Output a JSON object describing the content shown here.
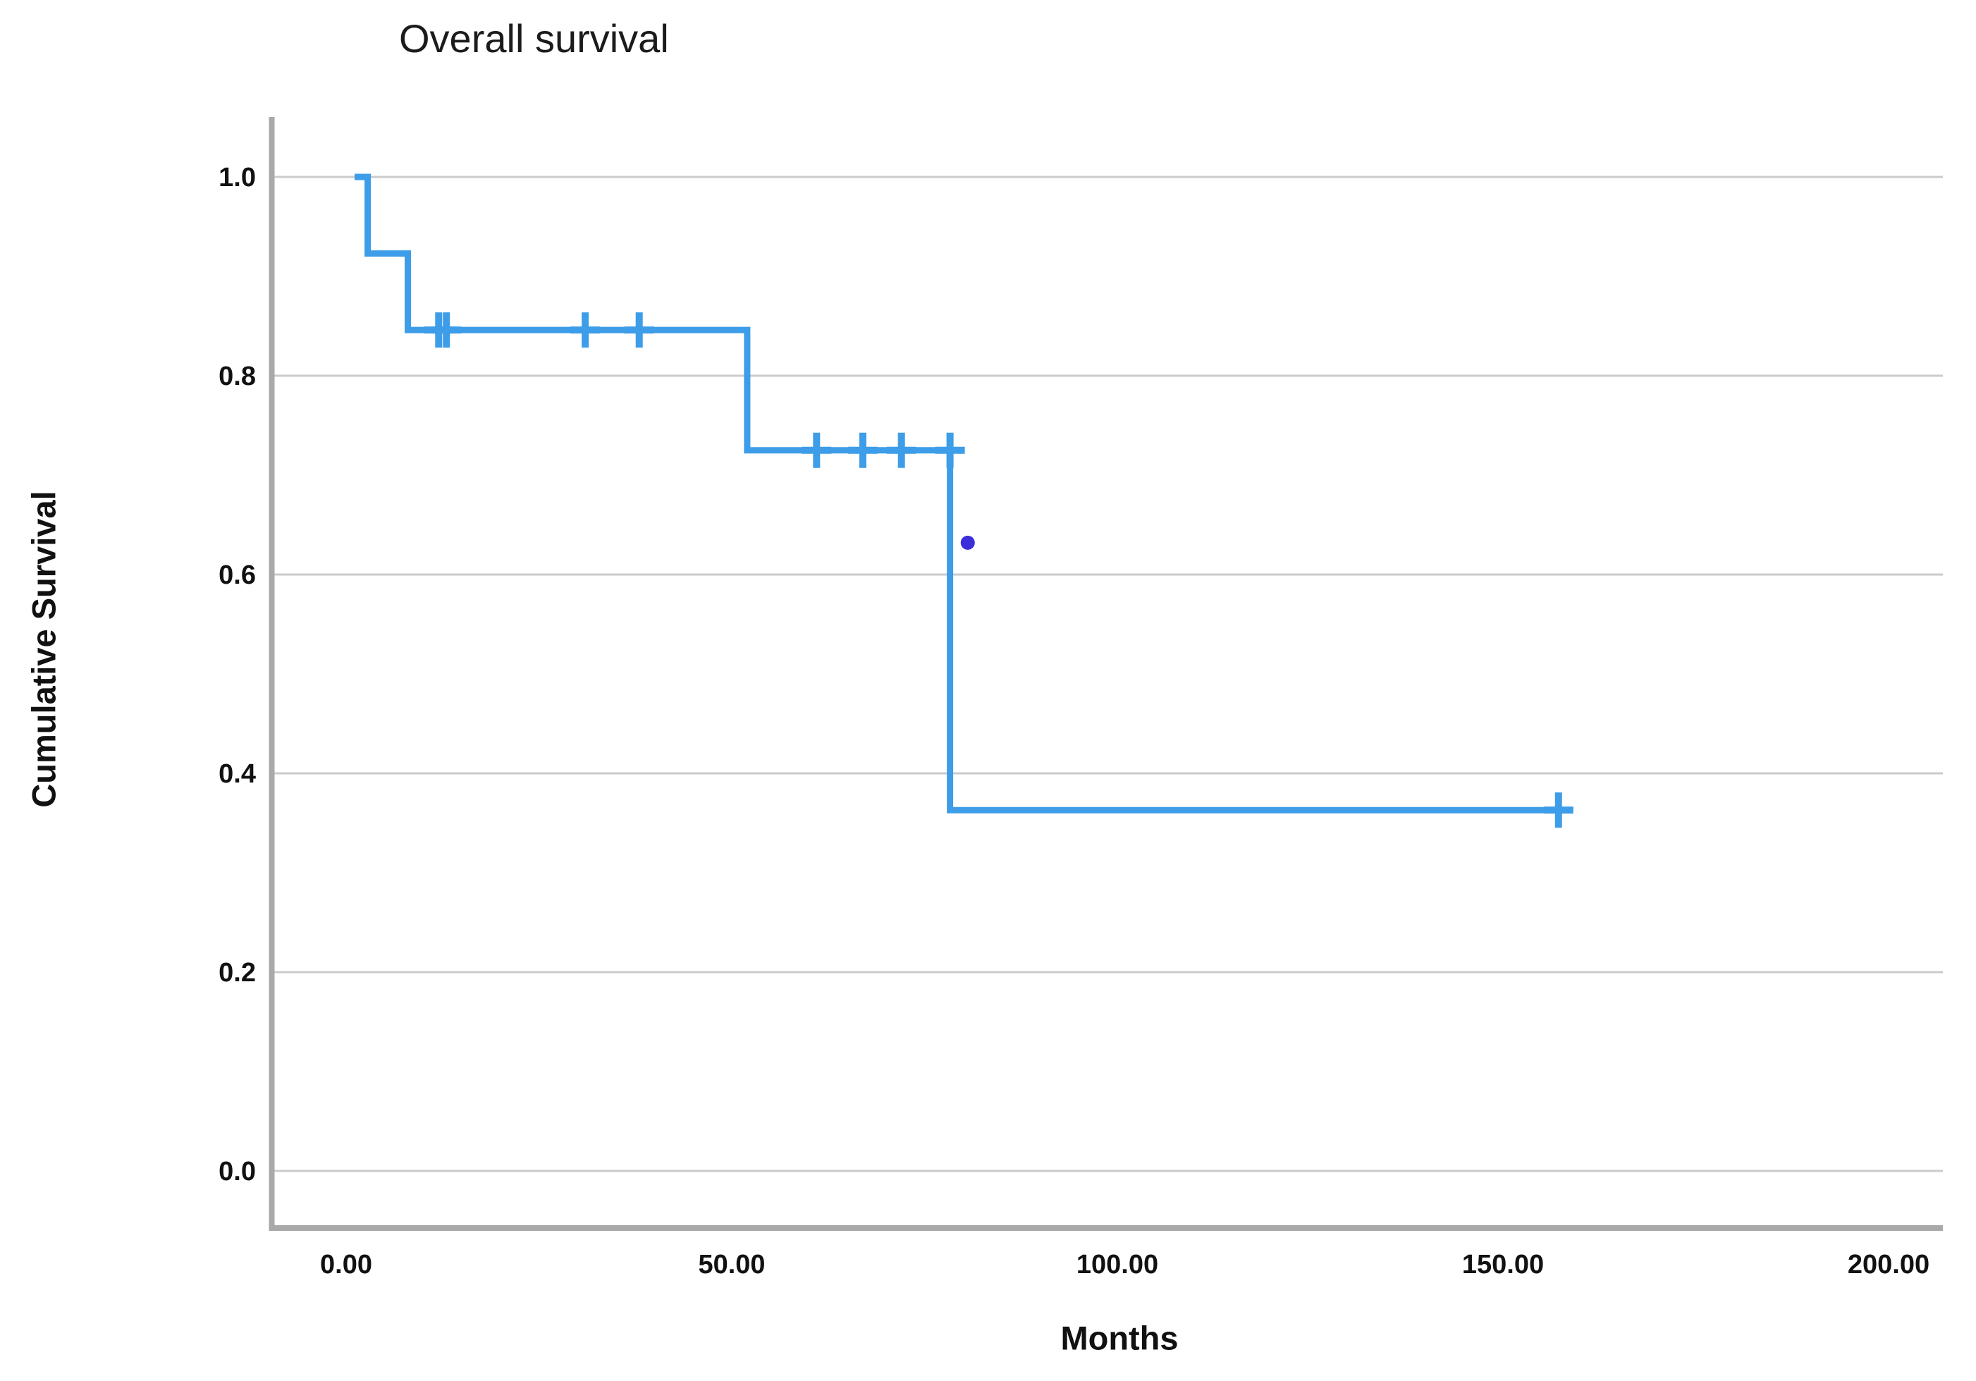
{
  "chart": {
    "title": "Overall survival",
    "xlabel": "Months",
    "ylabel": "Cumulative Survival"
  },
  "chart_data": {
    "type": "line",
    "subtype": "kaplan-meier-step-function",
    "title": "Overall survival",
    "xlabel": "Months",
    "ylabel": "Cumulative Survival",
    "xlim": [
      0,
      207
    ],
    "ylim": [
      0.0,
      1.0
    ],
    "grid": "horizontal-only",
    "legend": "none",
    "x_ticks": [
      {
        "value": 0,
        "label": "0.00"
      },
      {
        "value": 50,
        "label": "50.00"
      },
      {
        "value": 100,
        "label": "100.00"
      },
      {
        "value": 150,
        "label": "150.00"
      },
      {
        "value": 200,
        "label": "200.00"
      }
    ],
    "y_ticks": [
      {
        "value": 1.0,
        "label": "1.0"
      },
      {
        "value": 0.8,
        "label": "0.8"
      },
      {
        "value": 0.6,
        "label": "0.6"
      },
      {
        "value": 0.4,
        "label": "0.4"
      },
      {
        "value": 0.2,
        "label": "0.2"
      },
      {
        "value": 0.0,
        "label": "0.0"
      }
    ],
    "series": [
      {
        "name": "Overall survival",
        "color": "#3D9DE8",
        "line_width": 9,
        "step_points": [
          [
            1.1,
            1.0
          ],
          [
            2.8,
            1.0
          ],
          [
            2.8,
            0.923
          ],
          [
            8.0,
            0.923
          ],
          [
            8.0,
            0.846
          ],
          [
            52.0,
            0.846
          ],
          [
            52.0,
            0.725
          ],
          [
            78.3,
            0.725
          ],
          [
            78.3,
            0.363
          ],
          [
            158.3,
            0.363
          ]
        ],
        "event_drops_months": [
          2.8,
          8.0,
          52.0,
          78.3
        ],
        "censor_marks": [
          [
            12.0,
            0.846
          ],
          [
            13.0,
            0.846
          ],
          [
            31.0,
            0.846
          ],
          [
            38.0,
            0.846
          ],
          [
            61.0,
            0.725
          ],
          [
            67.0,
            0.725
          ],
          [
            72.0,
            0.725
          ],
          [
            78.3,
            0.725
          ],
          [
            157.2,
            0.363
          ]
        ]
      }
    ],
    "annotations": [
      {
        "type": "dot",
        "x": 80.6,
        "y": 0.632,
        "color": "#3B2FD9",
        "radius": 10
      }
    ],
    "colors": {
      "curve": "#3D9DE8",
      "outlier_dot": "#3B2FD9",
      "gridline": "#CBCBCB",
      "axis_line": "#A9A9A9",
      "text": "#111111",
      "background": "#FFFFFF"
    }
  }
}
